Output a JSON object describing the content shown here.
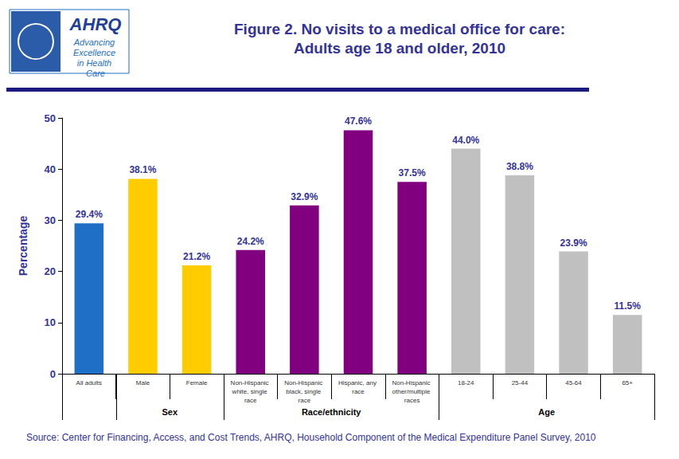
{
  "chart_data": {
    "type": "bar",
    "title": "Figure 2. No visits to a medical office for care:",
    "subtitle": "Adults age 18 and older, 2010",
    "y_label": "Percentage",
    "categories": [
      "All adults",
      "Male",
      "Female",
      "Non-Hispanic white, single race",
      "Non-Hispanic black, single race",
      "Hispanic, any race",
      "Non-Hispanic other/multiple races",
      "18-24",
      "25-44",
      "45-64",
      "65+"
    ],
    "values": [
      29.4,
      38.1,
      21.2,
      24.2,
      32.9,
      47.6,
      37.5,
      44.0,
      38.8,
      23.9,
      11.5
    ],
    "value_labels": [
      "29.4%",
      "38.1%",
      "21.2%",
      "24.2%",
      "32.9%",
      "47.6%",
      "37.5%",
      "44.0%",
      "38.8%",
      "23.9%",
      "11.5%"
    ],
    "colors": [
      "#1f6fc6",
      "#ffcc00",
      "#ffcc00",
      "#800080",
      "#800080",
      "#800080",
      "#800080",
      "#c0c0c0",
      "#c0c0c0",
      "#c0c0c0",
      "#c0c0c0"
    ],
    "groups": [
      {
        "name": "Sex",
        "categories": [
          "Male",
          "Female"
        ]
      },
      {
        "name": "Race/ethnicity",
        "categories": [
          "Non-Hispanic white, single race",
          "Non-Hispanic black, single race",
          "Hispanic, any race",
          "Non-Hispanic other/multiple races"
        ]
      },
      {
        "name": "Age",
        "categories": [
          "18-24",
          "25-44",
          "45-64",
          "65+"
        ]
      }
    ],
    "ylim": [
      0,
      50
    ],
    "yticks": [
      0,
      10,
      20,
      30,
      40,
      50
    ],
    "grid": false,
    "data_labels": true,
    "source": "Source: Center for Financing, Access, and Cost Trends, AHRQ, Household Component of the Medical Expenditure Panel Survey, 2010",
    "logo_text": "AHRQ",
    "logo_tagline": "Advancing Excellence in Health Care"
  }
}
